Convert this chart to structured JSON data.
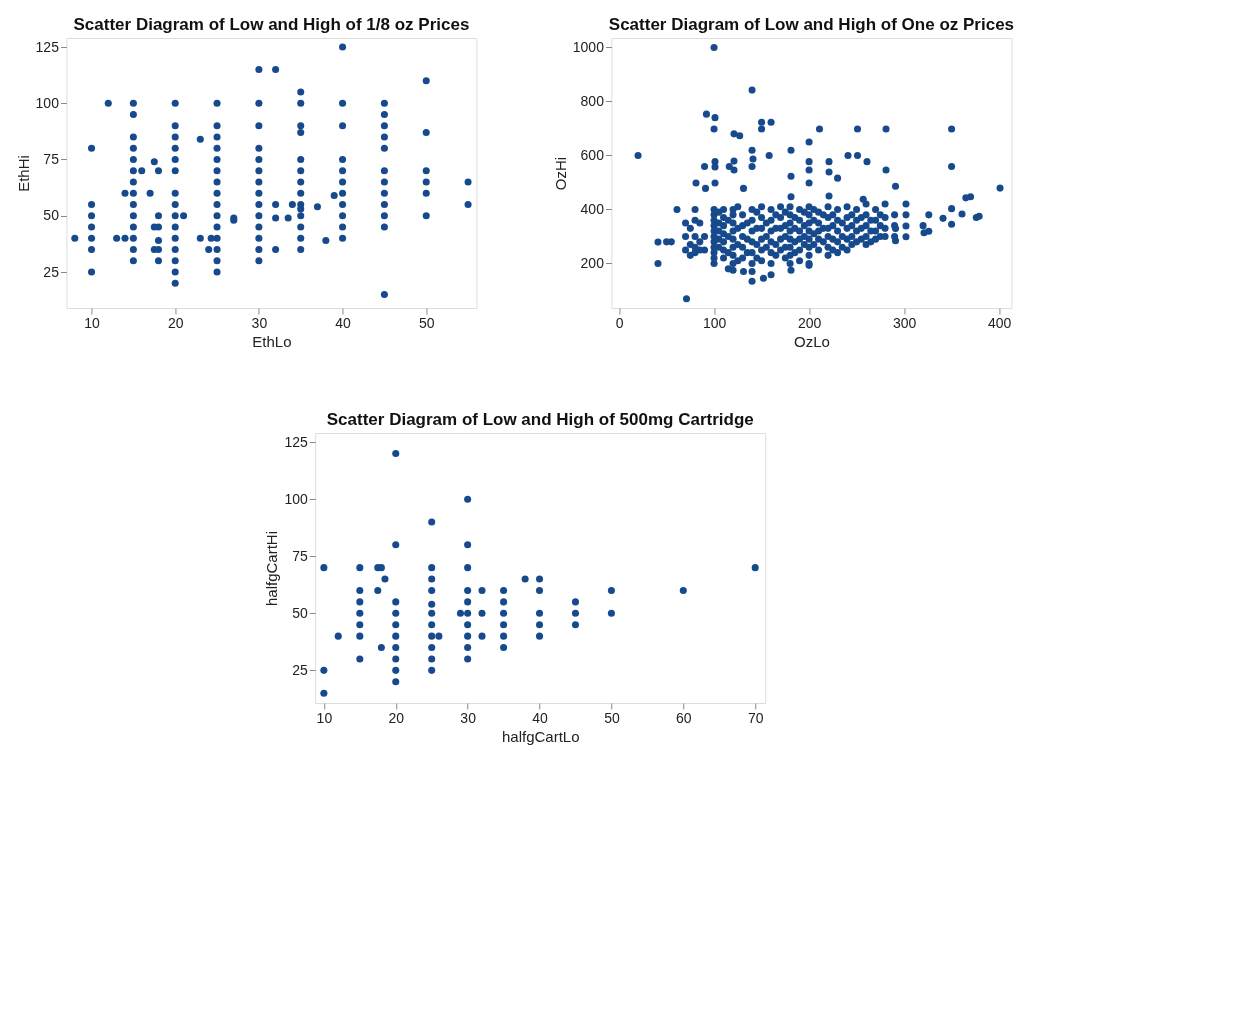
{
  "chart_data": [
    {
      "type": "scatter",
      "title": "Scatter Diagram of Low and High of 1/8 oz Prices",
      "xlabel": "EthLo",
      "ylabel": "EthHi",
      "color": "#164a8c",
      "marker": "circle",
      "grid": false,
      "xlim": [
        7,
        56
      ],
      "ylim": [
        9,
        129
      ],
      "xticks": [
        10,
        20,
        30,
        40,
        50
      ],
      "yticks": [
        25,
        50,
        75,
        100,
        125
      ],
      "x": [
        8,
        10,
        10,
        10,
        10,
        10,
        10,
        10,
        12,
        13,
        14,
        14,
        15,
        15,
        15,
        15,
        15,
        15,
        15,
        15,
        15,
        15,
        15,
        15,
        15,
        15,
        16,
        17,
        17.5,
        17.5,
        17.5,
        18,
        18,
        18,
        18,
        18,
        18,
        20,
        20,
        20,
        20,
        20,
        20,
        20,
        20,
        20,
        20,
        20,
        20,
        20,
        20,
        20,
        21,
        23,
        23,
        24,
        24.3,
        25,
        25,
        25,
        25,
        25,
        25,
        25,
        25,
        25,
        25,
        25,
        25,
        25,
        25,
        25,
        27,
        27,
        30,
        30,
        30,
        30,
        30,
        30,
        30,
        30,
        30,
        30,
        30,
        30,
        30,
        30,
        32,
        32,
        32,
        32,
        33.5,
        34,
        35,
        35,
        35,
        35,
        35,
        35,
        35,
        35,
        35,
        35,
        35,
        35,
        35,
        35,
        37,
        38,
        39,
        40,
        40,
        40,
        40,
        40,
        40,
        40,
        40,
        40,
        40,
        40,
        45,
        45,
        45,
        45,
        45,
        45,
        45,
        45,
        45,
        45,
        45,
        45,
        50,
        50,
        50,
        50,
        50,
        50,
        55,
        55
      ],
      "values": [
        40,
        80,
        55,
        50,
        45,
        40,
        35,
        25,
        100,
        40,
        60,
        40,
        100,
        95,
        85,
        80,
        75,
        70,
        65,
        60,
        55,
        50,
        45,
        40,
        35,
        30,
        70,
        60,
        74,
        45,
        35,
        70,
        50,
        45,
        39,
        35,
        30,
        100,
        90,
        85,
        80,
        75,
        70,
        60,
        55,
        50,
        45,
        40,
        35,
        30,
        25,
        20,
        50,
        84,
        40,
        35,
        40,
        100,
        90,
        85,
        80,
        75,
        70,
        65,
        60,
        55,
        50,
        45,
        40,
        35,
        30,
        25,
        49,
        48,
        115,
        100,
        90,
        80,
        75,
        70,
        65,
        60,
        55,
        50,
        45,
        40,
        35,
        30,
        115,
        55,
        49,
        35,
        49,
        55,
        105,
        100,
        90,
        87,
        75,
        70,
        65,
        60,
        55,
        53,
        50,
        45,
        40,
        35,
        54,
        39,
        59,
        125,
        100,
        90,
        75,
        70,
        65,
        60,
        55,
        50,
        45,
        40,
        100,
        95,
        90,
        85,
        80,
        70,
        65,
        60,
        55,
        50,
        45,
        15,
        110,
        87,
        70,
        65,
        60,
        50,
        65,
        55
      ]
    },
    {
      "type": "scatter",
      "title": "Scatter Diagram of Low and High of One oz Prices",
      "xlabel": "OzLo",
      "ylabel": "OzHi",
      "color": "#164a8c",
      "marker": "circle",
      "grid": false,
      "xlim": [
        -8,
        413
      ],
      "ylim": [
        35,
        1035
      ],
      "xticks": [
        0,
        100,
        200,
        300,
        400
      ],
      "yticks": [
        200,
        400,
        600,
        800,
        1000
      ],
      "x": [
        20,
        100,
        140,
        92,
        101,
        100,
        150,
        160,
        150,
        121,
        127,
        211,
        251,
        281,
        350,
        200,
        140,
        141,
        158,
        181,
        241,
        251,
        261,
        221,
        200,
        200,
        221,
        230,
        281,
        350,
        101,
        101,
        90,
        116,
        121,
        121,
        140,
        81,
        91,
        101,
        131,
        181,
        200,
        291,
        401,
        370,
        365,
        181,
        221,
        257,
        350,
        361,
        379,
        376,
        341,
        350,
        326,
        326,
        321,
        302,
        302,
        302,
        302,
        291,
        291,
        61,
        41,
        41,
        71,
        140,
        152,
        160,
        131,
        200,
        181,
        50,
        55,
        70,
        70,
        70,
        75,
        75,
        75,
        80,
        80,
        80,
        80,
        80,
        85,
        85,
        85,
        90,
        90,
        100,
        100,
        100,
        100,
        100,
        100,
        100,
        100,
        100,
        100,
        100,
        105,
        105,
        105,
        105,
        105,
        110,
        110,
        110,
        110,
        110,
        110,
        110,
        115,
        115,
        115,
        115,
        120,
        120,
        120,
        120,
        120,
        120,
        120,
        120,
        120,
        125,
        125,
        125,
        125,
        130,
        130,
        130,
        130,
        130,
        135,
        135,
        135,
        140,
        140,
        140,
        140,
        140,
        140,
        140,
        145,
        145,
        145,
        145,
        150,
        150,
        150,
        150,
        150,
        150,
        155,
        155,
        155,
        160,
        160,
        160,
        160,
        160,
        160,
        165,
        165,
        165,
        165,
        170,
        170,
        170,
        170,
        170,
        175,
        175,
        175,
        175,
        175,
        180,
        180,
        180,
        180,
        180,
        180,
        180,
        180,
        185,
        185,
        185,
        185,
        190,
        190,
        190,
        190,
        190,
        190,
        195,
        195,
        195,
        195,
        200,
        200,
        200,
        200,
        200,
        200,
        200,
        200,
        205,
        205,
        205,
        205,
        210,
        210,
        210,
        210,
        210,
        215,
        215,
        215,
        220,
        220,
        220,
        220,
        220,
        220,
        225,
        225,
        225,
        225,
        230,
        230,
        230,
        230,
        230,
        235,
        235,
        235,
        240,
        240,
        240,
        240,
        240,
        245,
        245,
        245,
        245,
        250,
        250,
        250,
        250,
        255,
        255,
        255,
        260,
        260,
        260,
        260,
        260,
        265,
        265,
        265,
        270,
        270,
        270,
        270,
        275,
        275,
        275,
        280,
        280,
        280,
        280,
        290,
        290,
        290,
        320
      ],
      "values": [
        600,
        1000,
        842,
        753,
        740,
        698,
        723,
        723,
        698,
        680,
        673,
        698,
        698,
        698,
        698,
        650,
        619,
        587,
        600,
        619,
        600,
        600,
        577,
        577,
        577,
        546,
        539,
        516,
        546,
        559,
        577,
        557,
        559,
        559,
        579,
        546,
        559,
        498,
        478,
        498,
        478,
        523,
        498,
        486,
        479,
        447,
        443,
        447,
        450,
        438,
        403,
        383,
        375,
        370,
        367,
        345,
        380,
        319,
        314,
        420,
        380,
        339,
        299,
        329,
        284,
        400,
        279,
        200,
        69,
        134,
        145,
        158,
        170,
        193,
        175,
        280,
        280,
        350,
        300,
        250,
        330,
        270,
        230,
        400,
        360,
        300,
        260,
        240,
        350,
        280,
        250,
        300,
        250,
        400,
        380,
        360,
        340,
        320,
        300,
        280,
        260,
        240,
        220,
        200,
        390,
        350,
        320,
        290,
        260,
        400,
        370,
        340,
        310,
        280,
        250,
        220,
        360,
        300,
        240,
        180,
        400,
        380,
        350,
        320,
        290,
        260,
        230,
        200,
        175,
        410,
        330,
        270,
        210,
        380,
        340,
        300,
        260,
        220,
        350,
        290,
        240,
        400,
        360,
        320,
        280,
        240,
        200,
        170,
        390,
        330,
        270,
        220,
        410,
        370,
        330,
        290,
        250,
        210,
        350,
        300,
        260,
        400,
        360,
        320,
        280,
        240,
        200,
        380,
        330,
        270,
        230,
        410,
        370,
        330,
        290,
        250,
        390,
        340,
        300,
        260,
        220,
        410,
        380,
        350,
        320,
        290,
        260,
        230,
        200,
        370,
        330,
        280,
        240,
        400,
        360,
        320,
        290,
        250,
        210,
        390,
        340,
        300,
        270,
        410,
        380,
        350,
        320,
        290,
        260,
        230,
        200,
        400,
        360,
        310,
        270,
        390,
        350,
        320,
        290,
        250,
        380,
        330,
        280,
        410,
        370,
        330,
        300,
        260,
        230,
        380,
        340,
        290,
        250,
        400,
        360,
        320,
        280,
        240,
        350,
        300,
        260,
        410,
        370,
        330,
        290,
        250,
        380,
        340,
        300,
        270,
        400,
        360,
        320,
        280,
        370,
        330,
        290,
        420,
        380,
        340,
        300,
        270,
        360,
        320,
        280,
        400,
        360,
        320,
        290,
        380,
        340,
        300,
        420,
        370,
        330,
        300,
        380,
        340,
        300,
        340
      ]
    },
    {
      "type": "scatter",
      "title": "Scatter Diagram of Low and High of 500mg Cartridge",
      "xlabel": "halfgCartLo",
      "ylabel": "halfgCartHi",
      "color": "#164a8c",
      "marker": "circle",
      "grid": false,
      "xlim": [
        8.8,
        71.4
      ],
      "ylim": [
        10.7,
        129
      ],
      "xticks": [
        10,
        20,
        30,
        40,
        50,
        60,
        70
      ],
      "yticks": [
        25,
        50,
        75,
        100,
        125
      ],
      "x": [
        10,
        10,
        10,
        12,
        15,
        15,
        15,
        15,
        15,
        15,
        15,
        17.5,
        17.5,
        18,
        18,
        18.5,
        20,
        20,
        20,
        20,
        20,
        20,
        20,
        20,
        20,
        20,
        25,
        25,
        25,
        25,
        25,
        25,
        25,
        25,
        25,
        25,
        25,
        26,
        29,
        30,
        30,
        30,
        30,
        30,
        30,
        30,
        30,
        30,
        30,
        32,
        32,
        32,
        35,
        35,
        35,
        35,
        35,
        35,
        38,
        40,
        40,
        40,
        40,
        40,
        45,
        45,
        45,
        50,
        50,
        60,
        70
      ],
      "values": [
        70,
        25,
        15,
        40,
        70,
        60,
        55,
        50,
        45,
        40,
        30,
        70,
        60,
        70,
        35,
        65,
        120,
        80,
        55,
        50,
        45,
        40,
        35,
        30,
        25,
        20,
        90,
        70,
        65,
        60,
        54,
        50,
        45,
        40,
        35,
        30,
        25,
        40,
        50,
        100,
        80,
        70,
        60,
        55,
        50,
        45,
        40,
        35,
        30,
        60,
        50,
        40,
        60,
        55,
        50,
        45,
        40,
        35,
        65,
        65,
        60,
        50,
        45,
        40,
        55,
        50,
        45,
        60,
        50,
        60,
        70
      ]
    }
  ]
}
